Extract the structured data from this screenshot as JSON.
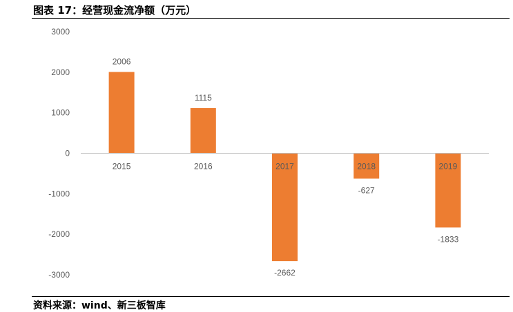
{
  "title": "图表 17：经营现金流净额（万元）",
  "source": "资料来源：wind、新三板智库",
  "chart_data": {
    "type": "bar",
    "categories": [
      "2015",
      "2016",
      "2017",
      "2018",
      "2019"
    ],
    "values": [
      2006,
      1115,
      -2662,
      -627,
      -1833
    ],
    "data_labels": [
      "2006",
      "1115",
      "-2662",
      "-627",
      "-1833"
    ],
    "ylim": [
      -3000,
      3000
    ],
    "yticks": [
      3000,
      2000,
      1000,
      0,
      -1000,
      -2000,
      -3000
    ],
    "ytick_labels": [
      "3000",
      "2000",
      "1000",
      "0",
      "-1000",
      "-2000",
      "-3000"
    ],
    "bar_color": "#ED7D31",
    "grid": false,
    "legend": "none"
  }
}
